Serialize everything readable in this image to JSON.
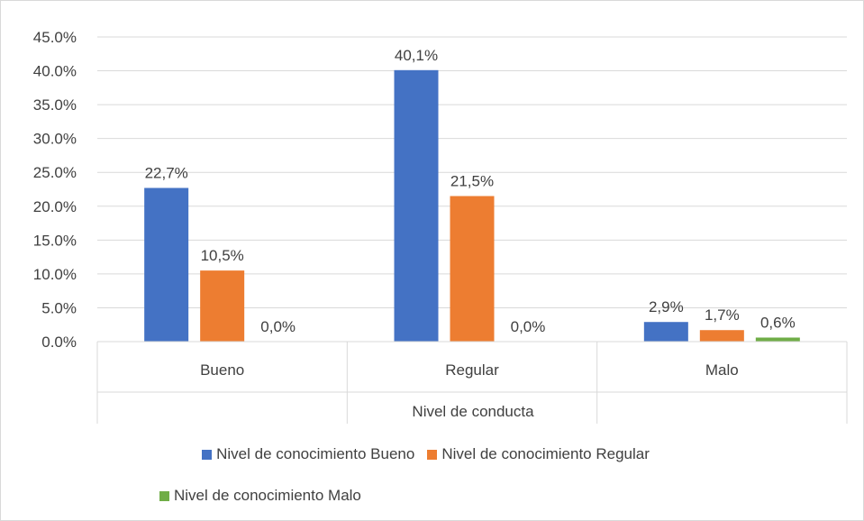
{
  "chart_data": {
    "type": "bar",
    "categories": [
      "Bueno",
      "Regular",
      "Malo"
    ],
    "series": [
      {
        "name": "Nivel de conocimiento Bueno",
        "values": [
          22.7,
          40.1,
          2.9
        ],
        "labels": [
          "22,7%",
          "40,1%",
          "2,9%"
        ],
        "color": "#4472c4"
      },
      {
        "name": "Nivel de conocimiento Regular",
        "values": [
          10.5,
          21.5,
          1.7
        ],
        "labels": [
          "10,5%",
          "21,5%",
          "1,7%"
        ],
        "color": "#ed7d31"
      },
      {
        "name": "Nivel de conocimiento Malo",
        "values": [
          0.0,
          0.0,
          0.6
        ],
        "labels": [
          "0,0%",
          "0,0%",
          "0,6%"
        ],
        "color": "#70ad47"
      }
    ],
    "xlabel": "Nivel de conducta",
    "ylabel": "",
    "ylim": [
      0,
      45
    ],
    "yticks": [
      0,
      5,
      10,
      15,
      20,
      25,
      30,
      35,
      40,
      45
    ],
    "ytick_labels": [
      "0.0%",
      "5.0%",
      "10.0%",
      "15.0%",
      "20.0%",
      "25.0%",
      "30.0%",
      "35.0%",
      "40.0%",
      "45.0%"
    ],
    "grid": true,
    "legend_position": "bottom"
  }
}
